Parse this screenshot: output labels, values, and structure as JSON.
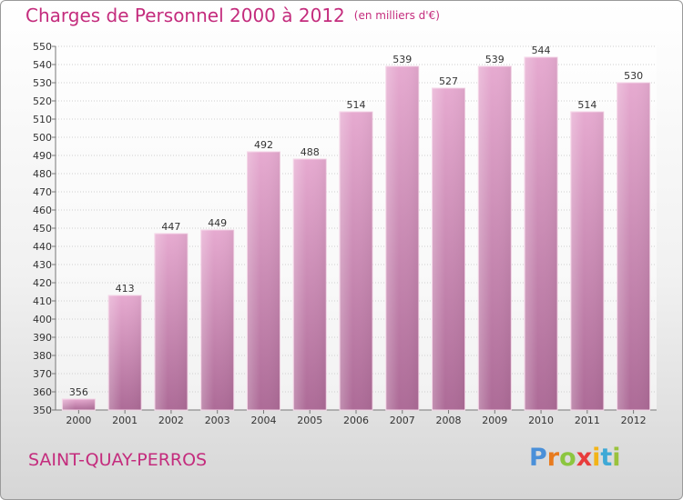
{
  "title": "Charges de Personnel 2000 à 2012",
  "subtitle": "(en milliers d'€)",
  "commune": "SAINT-QUAY-PERROS",
  "logo": {
    "letters": [
      "P",
      "r",
      "o",
      "x",
      "i",
      "t",
      "i"
    ],
    "colors": [
      "#4a90d9",
      "#e87b1e",
      "#8cc63f",
      "#e83c3c",
      "#f2b418",
      "#3fa9d6",
      "#9ac23c"
    ]
  },
  "colors": {
    "accent": "#c42c7d",
    "bar_top": "#e6aad0",
    "bar_bottom": "#ad6b97",
    "grid": "#cfcfcf"
  },
  "chart_data": {
    "type": "bar",
    "title": "Charges de Personnel 2000 à 2012",
    "subtitle": "(en milliers d'€)",
    "categories": [
      "2000",
      "2001",
      "2002",
      "2003",
      "2004",
      "2005",
      "2006",
      "2007",
      "2008",
      "2009",
      "2010",
      "2011",
      "2012"
    ],
    "values": [
      356,
      413,
      447,
      449,
      492,
      488,
      514,
      539,
      527,
      539,
      544,
      514,
      530
    ],
    "ylim": [
      350,
      550
    ],
    "ytick_step": 10,
    "grid": true,
    "show_data_labels": true
  }
}
